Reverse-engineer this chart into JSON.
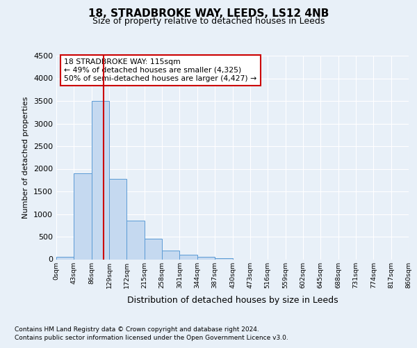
{
  "title": "18, STRADBROKE WAY, LEEDS, LS12 4NB",
  "subtitle": "Size of property relative to detached houses in Leeds",
  "xlabel": "Distribution of detached houses by size in Leeds",
  "ylabel": "Number of detached properties",
  "bar_values": [
    50,
    1900,
    3500,
    1780,
    860,
    450,
    185,
    100,
    50,
    30,
    0,
    0,
    0,
    0,
    0,
    0,
    0,
    0,
    0,
    0
  ],
  "bin_labels": [
    "0sqm",
    "43sqm",
    "86sqm",
    "129sqm",
    "172sqm",
    "215sqm",
    "258sqm",
    "301sqm",
    "344sqm",
    "387sqm",
    "430sqm",
    "473sqm",
    "516sqm",
    "559sqm",
    "602sqm",
    "645sqm",
    "688sqm",
    "731sqm",
    "774sqm",
    "817sqm",
    "860sqm"
  ],
  "bin_edges": [
    0,
    43,
    86,
    129,
    172,
    215,
    258,
    301,
    344,
    387,
    430,
    473,
    516,
    559,
    602,
    645,
    688,
    731,
    774,
    817,
    860
  ],
  "bar_color": "#c5d9f0",
  "bar_edge_color": "#5b9bd5",
  "red_line_x": 115,
  "ylim": [
    0,
    4500
  ],
  "yticks": [
    0,
    500,
    1000,
    1500,
    2000,
    2500,
    3000,
    3500,
    4000,
    4500
  ],
  "annotation_title": "18 STRADBROKE WAY: 115sqm",
  "annotation_line1": "← 49% of detached houses are smaller (4,325)",
  "annotation_line2": "50% of semi-detached houses are larger (4,427) →",
  "annotation_box_color": "#ffffff",
  "annotation_box_edge": "#cc0000",
  "footer_line1": "Contains HM Land Registry data © Crown copyright and database right 2024.",
  "footer_line2": "Contains public sector information licensed under the Open Government Licence v3.0.",
  "background_color": "#e8f0f8",
  "grid_color": "#ffffff"
}
